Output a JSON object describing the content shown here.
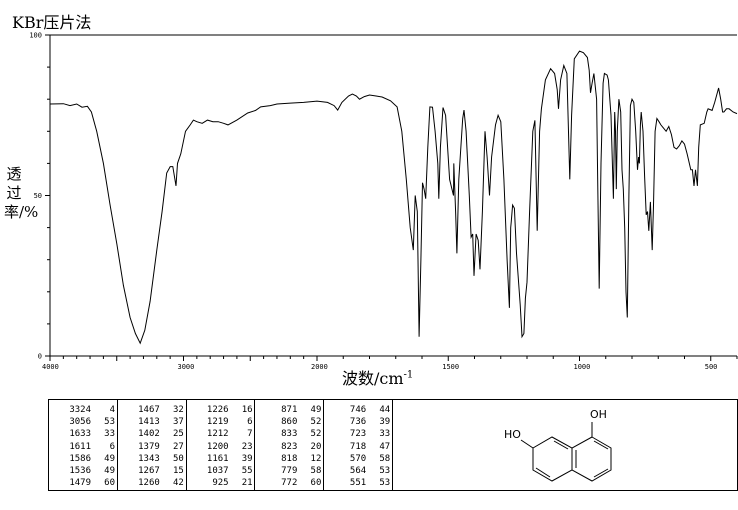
{
  "header": {
    "title": "KBr压片法"
  },
  "chart_data": {
    "type": "line",
    "title": "KBr压片法",
    "xlabel": "波数/cm",
    "xlabel_sup": "-1",
    "ylabel": "透过率/%",
    "xlim": [
      4000,
      400
    ],
    "ylim": [
      0,
      100
    ],
    "x_scale": "two-segment linear, break at 2000 (region below 2000 expanded 2x)",
    "x_ticks": [
      "4000",
      "3000",
      "2000",
      "1500",
      "1000",
      "500"
    ],
    "y_ticks": [
      "0",
      "50",
      "100"
    ],
    "grid": false,
    "line_color": "#000000",
    "series": [
      {
        "points": [
          [
            4000,
            78.5
          ],
          [
            3900,
            78.6
          ],
          [
            3850,
            78
          ],
          [
            3800,
            78.5
          ],
          [
            3760,
            77.5
          ],
          [
            3720,
            77.8
          ],
          [
            3690,
            76
          ],
          [
            3650,
            70
          ],
          [
            3600,
            60
          ],
          [
            3550,
            47
          ],
          [
            3500,
            35
          ],
          [
            3450,
            22
          ],
          [
            3400,
            12
          ],
          [
            3360,
            7
          ],
          [
            3324,
            4
          ],
          [
            3290,
            8
          ],
          [
            3250,
            17
          ],
          [
            3200,
            33
          ],
          [
            3160,
            45
          ],
          [
            3126,
            57
          ],
          [
            3100,
            59
          ],
          [
            3080,
            59
          ],
          [
            3056,
            53
          ],
          [
            3045,
            60
          ],
          [
            3020,
            63
          ],
          [
            2985,
            70
          ],
          [
            2950,
            72
          ],
          [
            2926,
            73.5
          ],
          [
            2900,
            73
          ],
          [
            2860,
            72.5
          ],
          [
            2820,
            73.5
          ],
          [
            2780,
            73
          ],
          [
            2740,
            73
          ],
          [
            2700,
            72.5
          ],
          [
            2667,
            72
          ],
          [
            2600,
            73.5
          ],
          [
            2519,
            75.7
          ],
          [
            2460,
            76.5
          ],
          [
            2422,
            77.6
          ],
          [
            2350,
            78
          ],
          [
            2300,
            78.5
          ],
          [
            2200,
            78.8
          ],
          [
            2100,
            79
          ],
          [
            2000,
            79.4
          ],
          [
            1960,
            79
          ],
          [
            1935,
            78
          ],
          [
            1921,
            76.6
          ],
          [
            1905,
            79
          ],
          [
            1880,
            81
          ],
          [
            1865,
            81.6
          ],
          [
            1850,
            81
          ],
          [
            1838,
            80
          ],
          [
            1820,
            80.8
          ],
          [
            1800,
            81.3
          ],
          [
            1775,
            81
          ],
          [
            1752,
            80.7
          ],
          [
            1720,
            79.5
          ],
          [
            1695,
            77.6
          ],
          [
            1677,
            70
          ],
          [
            1660,
            55
          ],
          [
            1645,
            40
          ],
          [
            1633,
            33
          ],
          [
            1626,
            50
          ],
          [
            1618,
            45
          ],
          [
            1611,
            6
          ],
          [
            1604,
            30
          ],
          [
            1598,
            54
          ],
          [
            1592,
            52
          ],
          [
            1586,
            49
          ],
          [
            1578,
            65
          ],
          [
            1570,
            77.6
          ],
          [
            1560,
            77.5
          ],
          [
            1550,
            70
          ],
          [
            1540,
            60
          ],
          [
            1536,
            49
          ],
          [
            1530,
            65
          ],
          [
            1520,
            77.4
          ],
          [
            1510,
            75
          ],
          [
            1495,
            55
          ],
          [
            1480,
            50
          ],
          [
            1479,
            60
          ],
          [
            1472,
            45
          ],
          [
            1467,
            32
          ],
          [
            1460,
            55
          ],
          [
            1445,
            74
          ],
          [
            1440,
            76.6
          ],
          [
            1432,
            70
          ],
          [
            1420,
            50
          ],
          [
            1413,
            37
          ],
          [
            1407,
            38
          ],
          [
            1402,
            25
          ],
          [
            1394,
            38
          ],
          [
            1386,
            36
          ],
          [
            1379,
            27
          ],
          [
            1370,
            45
          ],
          [
            1360,
            70
          ],
          [
            1352,
            62
          ],
          [
            1343,
            50
          ],
          [
            1335,
            62
          ],
          [
            1320,
            72
          ],
          [
            1310,
            75
          ],
          [
            1300,
            73
          ],
          [
            1288,
            55
          ],
          [
            1276,
            30
          ],
          [
            1267,
            15
          ],
          [
            1262,
            40
          ],
          [
            1260,
            42
          ],
          [
            1255,
            47
          ],
          [
            1248,
            46
          ],
          [
            1240,
            32
          ],
          [
            1226,
            16
          ],
          [
            1219,
            6
          ],
          [
            1212,
            7
          ],
          [
            1206,
            18
          ],
          [
            1200,
            23
          ],
          [
            1190,
            45
          ],
          [
            1178,
            70
          ],
          [
            1170,
            73.4
          ],
          [
            1161,
            39
          ],
          [
            1152,
            70
          ],
          [
            1145,
            77
          ],
          [
            1130,
            86
          ],
          [
            1110,
            89.5
          ],
          [
            1095,
            88
          ],
          [
            1085,
            83
          ],
          [
            1080,
            77
          ],
          [
            1072,
            86
          ],
          [
            1060,
            90.5
          ],
          [
            1048,
            88
          ],
          [
            1037,
            55
          ],
          [
            1030,
            75
          ],
          [
            1020,
            92.6
          ],
          [
            1000,
            95
          ],
          [
            985,
            94.5
          ],
          [
            970,
            93
          ],
          [
            963,
            89
          ],
          [
            958,
            82
          ],
          [
            952,
            85
          ],
          [
            945,
            88
          ],
          [
            935,
            80
          ],
          [
            930,
            50
          ],
          [
            925,
            21
          ],
          [
            918,
            60
          ],
          [
            910,
            85
          ],
          [
            905,
            88
          ],
          [
            895,
            87.5
          ],
          [
            890,
            86
          ],
          [
            880,
            75
          ],
          [
            871,
            49
          ],
          [
            866,
            76
          ],
          [
            863,
            70
          ],
          [
            860,
            52
          ],
          [
            856,
            70
          ],
          [
            850,
            80
          ],
          [
            843,
            76
          ],
          [
            838,
            58
          ],
          [
            833,
            52
          ],
          [
            828,
            40
          ],
          [
            823,
            20
          ],
          [
            818,
            12
          ],
          [
            812,
            50
          ],
          [
            806,
            78
          ],
          [
            800,
            80
          ],
          [
            793,
            79
          ],
          [
            786,
            70
          ],
          [
            779,
            58
          ],
          [
            775,
            62
          ],
          [
            772,
            60
          ],
          [
            768,
            72
          ],
          [
            765,
            76
          ],
          [
            758,
            70
          ],
          [
            752,
            56
          ],
          [
            746,
            44
          ],
          [
            741,
            45
          ],
          [
            736,
            39
          ],
          [
            730,
            48
          ],
          [
            723,
            33
          ],
          [
            718,
            47
          ],
          [
            712,
            70
          ],
          [
            705,
            74
          ],
          [
            697,
            73
          ],
          [
            690,
            72
          ],
          [
            680,
            71
          ],
          [
            670,
            70
          ],
          [
            660,
            71.5
          ],
          [
            650,
            69
          ],
          [
            640,
            65
          ],
          [
            630,
            64.5
          ],
          [
            620,
            65.5
          ],
          [
            610,
            67
          ],
          [
            600,
            66
          ],
          [
            590,
            63
          ],
          [
            576,
            58
          ],
          [
            570,
            58
          ],
          [
            564,
            53
          ],
          [
            558,
            58
          ],
          [
            551,
            53
          ],
          [
            546,
            65
          ],
          [
            540,
            72
          ],
          [
            525,
            72.5
          ],
          [
            515,
            76
          ],
          [
            510,
            77
          ],
          [
            495,
            76.5
          ],
          [
            485,
            79
          ],
          [
            470,
            83.5
          ],
          [
            462,
            80
          ],
          [
            455,
            76
          ],
          [
            450,
            76
          ],
          [
            440,
            77
          ],
          [
            430,
            77
          ],
          [
            415,
            76
          ],
          [
            400,
            75.5
          ]
        ]
      }
    ]
  },
  "peak_table": {
    "columns": [
      [
        [
          "3324",
          "4"
        ],
        [
          "3056",
          "53"
        ],
        [
          "1633",
          "33"
        ],
        [
          "1611",
          "6"
        ],
        [
          "1586",
          "49"
        ],
        [
          "1536",
          "49"
        ],
        [
          "1479",
          "60"
        ]
      ],
      [
        [
          "1467",
          "32"
        ],
        [
          "1413",
          "37"
        ],
        [
          "1402",
          "25"
        ],
        [
          "1379",
          "27"
        ],
        [
          "1343",
          "50"
        ],
        [
          "1267",
          "15"
        ],
        [
          "1260",
          "42"
        ]
      ],
      [
        [
          "1226",
          "16"
        ],
        [
          "1219",
          "6"
        ],
        [
          "1212",
          "7"
        ],
        [
          "1200",
          "23"
        ],
        [
          "1161",
          "39"
        ],
        [
          "1037",
          "55"
        ],
        [
          "925",
          "21"
        ]
      ],
      [
        [
          "871",
          "49"
        ],
        [
          "860",
          "52"
        ],
        [
          "833",
          "52"
        ],
        [
          "823",
          "20"
        ],
        [
          "818",
          "12"
        ],
        [
          "779",
          "58"
        ],
        [
          "772",
          "60"
        ]
      ],
      [
        [
          "746",
          "44"
        ],
        [
          "736",
          "39"
        ],
        [
          "723",
          "33"
        ],
        [
          "718",
          "47"
        ],
        [
          "570",
          "58"
        ],
        [
          "564",
          "53"
        ],
        [
          "551",
          "53"
        ]
      ]
    ]
  },
  "structure": {
    "oh_top": "OH",
    "oh_left": "HO"
  }
}
